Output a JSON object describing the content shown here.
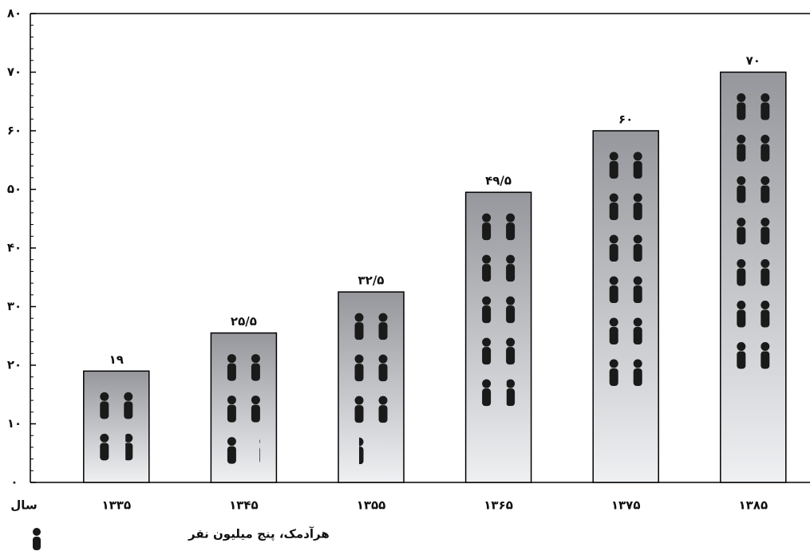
{
  "chart_data": {
    "type": "bar",
    "x_label": "سال",
    "legend_text": "هرآدمک، پنج میلیون نفر",
    "categories": [
      "۱۳۳۵",
      "۱۳۴۵",
      "۱۳۵۵",
      "۱۳۶۵",
      "۱۳۷۵",
      "۱۳۸۵"
    ],
    "values": [
      19,
      25.5,
      32.5,
      49.5,
      60,
      70
    ],
    "value_labels": [
      "۱۹",
      "۲۵/۵",
      "۳۲/۵",
      "۴۹/۵",
      "۶۰",
      "۷۰"
    ],
    "ylim": [
      0,
      80
    ],
    "yticks": [
      {
        "value": 0,
        "label": "۰"
      },
      {
        "value": 10,
        "label": "۱۰"
      },
      {
        "value": 20,
        "label": "۲۰"
      },
      {
        "value": 30,
        "label": "۳۰"
      },
      {
        "value": 40,
        "label": "۴۰"
      },
      {
        "value": 50,
        "label": "۵۰"
      },
      {
        "value": 60,
        "label": "۶۰"
      },
      {
        "value": 70,
        "label": "۷۰"
      },
      {
        "value": 80,
        "label": "۸۰"
      }
    ],
    "icon_color": "#1a1a1a"
  }
}
